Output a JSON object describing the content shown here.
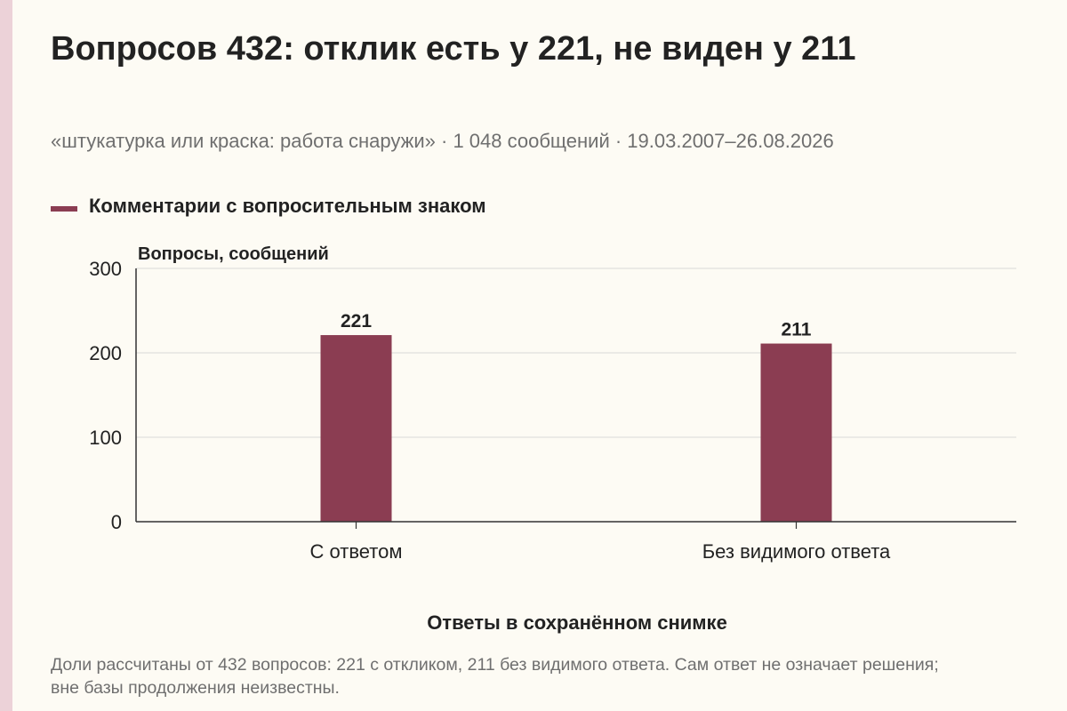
{
  "title": "Вопросов 432: отклик есть у 221, не виден у 211",
  "subtitle": "«штукатурка или краска: работа снаружи» · 1 048 сообщений · 19.03.2007–26.08.2026",
  "footnote": "Доли рассчитаны от 432 вопросов: 221 с откликом, 211 без видимого ответа. Сам ответ не означает решения; вне базы продолжения неизвестны.",
  "colors": {
    "bar": "#8b3d52",
    "grid": "#d9d9d9",
    "axis": "#333333",
    "accent_strip": "#ecd2d8"
  },
  "chart_data": {
    "type": "bar",
    "categories": [
      "С ответом",
      "Без видимого ответа"
    ],
    "series": [
      {
        "name": "Комментарии с вопросительным знаком",
        "values": [
          221,
          211
        ],
        "data_labels": [
          "221",
          "211"
        ]
      }
    ],
    "xlabel": "Ответы в сохранённом снимке",
    "ylabel": "Вопросы, сообщений",
    "ylim": [
      0,
      300
    ],
    "yticks": [
      0,
      100,
      200,
      300
    ],
    "ytick_labels": [
      "0",
      "100",
      "200",
      "300"
    ],
    "grid": true,
    "legend": "top-left"
  }
}
